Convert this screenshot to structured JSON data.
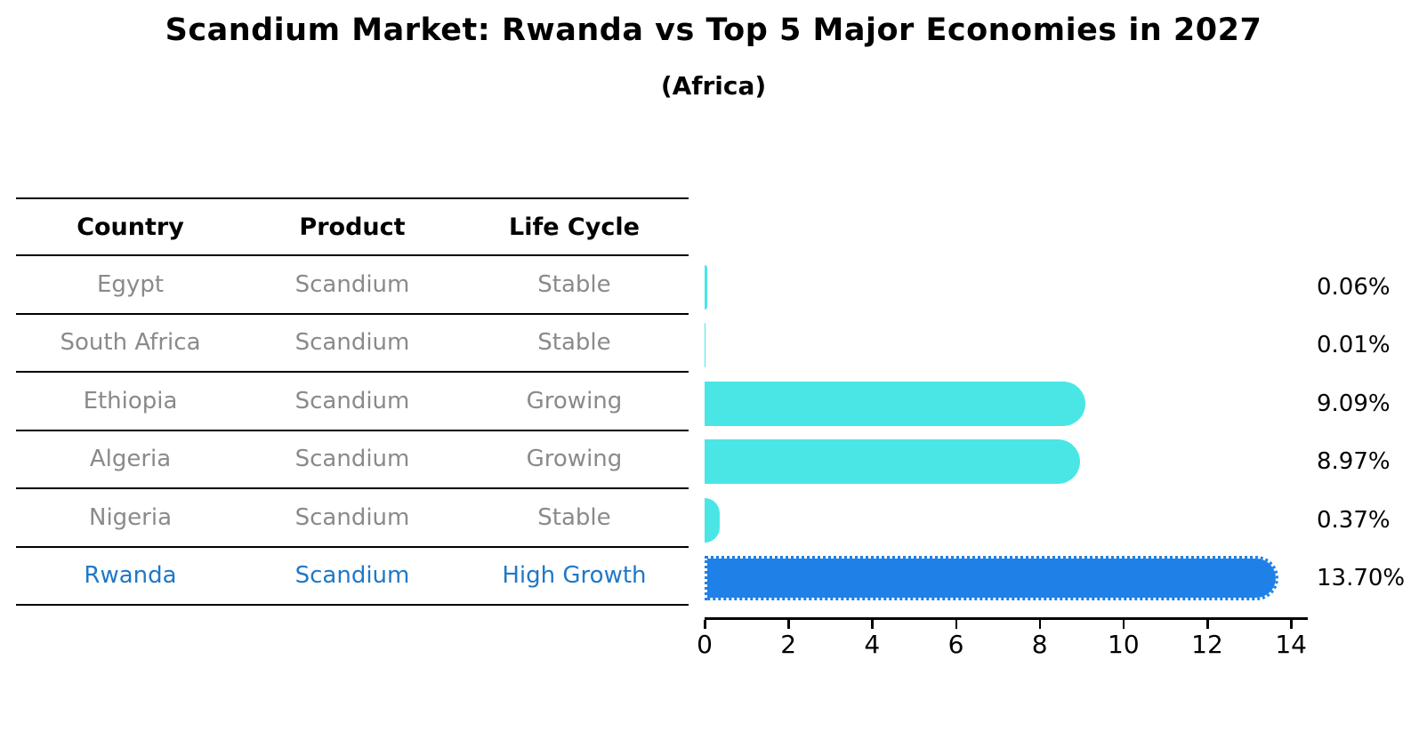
{
  "title": "Scandium Market: Rwanda vs Top 5 Major Economies in 2027",
  "subtitle": "(Africa)",
  "table": {
    "headers": [
      "Country",
      "Product",
      "Life Cycle"
    ],
    "rows": [
      {
        "country": "Egypt",
        "product": "Scandium",
        "life_cycle": "Stable",
        "highlight": false
      },
      {
        "country": "South Africa",
        "product": "Scandium",
        "life_cycle": "Stable",
        "highlight": false
      },
      {
        "country": "Ethiopia",
        "product": "Scandium",
        "life_cycle": "Growing",
        "highlight": false
      },
      {
        "country": "Algeria",
        "product": "Scandium",
        "life_cycle": "Growing",
        "highlight": false
      },
      {
        "country": "Nigeria",
        "product": "Scandium",
        "life_cycle": "Stable",
        "highlight": false
      },
      {
        "country": "Rwanda",
        "product": "Scandium",
        "life_cycle": "High Growth",
        "highlight": true
      }
    ]
  },
  "chart_data": {
    "type": "bar",
    "orientation": "horizontal",
    "title": "Scandium Market: Rwanda vs Top 5 Major Economies in 2027",
    "subtitle": "(Africa)",
    "categories": [
      "Egypt",
      "South Africa",
      "Ethiopia",
      "Algeria",
      "Nigeria",
      "Rwanda"
    ],
    "values": [
      0.06,
      0.01,
      9.09,
      8.97,
      0.37,
      13.7
    ],
    "value_labels": [
      "0.06%",
      "0.01%",
      "9.09%",
      "8.97%",
      "0.37%",
      "13.70%"
    ],
    "xticks": [
      0,
      2,
      4,
      6,
      8,
      10,
      12,
      14
    ],
    "xlim": [
      0,
      14.4
    ],
    "xlabel": "",
    "ylabel": "",
    "grid": false,
    "legend": false,
    "bar_colors": [
      "#4AE6E6",
      "#4AE6E6",
      "#4AE6E6",
      "#4AE6E6",
      "#4AE6E6",
      "#1F80E8"
    ],
    "base_color": "#4AE6E6",
    "highlight_color": "#1F80E8",
    "highlight_index": 5
  },
  "colors": {
    "highlight_text": "#1F78C8",
    "row_text": "#8A8A8A",
    "header_text": "#000000",
    "axis": "#000000"
  }
}
